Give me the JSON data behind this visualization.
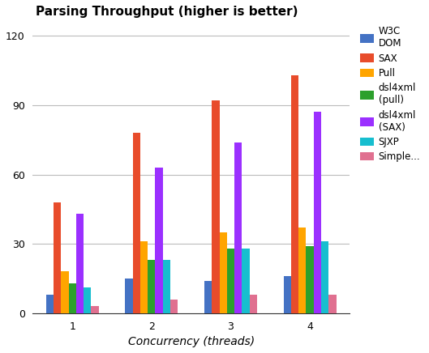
{
  "title": "Parsing Throughput (higher is better)",
  "xlabel": "Concurrency (threads)",
  "categories": [
    1,
    2,
    3,
    4
  ],
  "series": [
    {
      "name": "W3C\nDOM",
      "color": "#4472C4",
      "values": [
        8,
        15,
        14,
        16
      ]
    },
    {
      "name": "SAX",
      "color": "#E84C2B",
      "values": [
        48,
        78,
        92,
        103
      ]
    },
    {
      "name": "Pull",
      "color": "#FFA500",
      "values": [
        18,
        31,
        35,
        37
      ]
    },
    {
      "name": "dsl4xml\n(pull)",
      "color": "#2CA02C",
      "values": [
        13,
        23,
        28,
        29
      ]
    },
    {
      "name": "dsl4xml\n(SAX)",
      "color": "#9B30FF",
      "values": [
        43,
        63,
        74,
        87
      ]
    },
    {
      "name": "SJXP",
      "color": "#17BECF",
      "values": [
        11,
        23,
        28,
        31
      ]
    },
    {
      "name": "Simple...",
      "color": "#E07090",
      "values": [
        3,
        6,
        8,
        8
      ]
    }
  ],
  "ylim": [
    0,
    125
  ],
  "yticks": [
    0,
    30,
    60,
    90,
    120
  ],
  "grid_color": "#BBBBBB",
  "background_color": "#FFFFFF",
  "bar_width": 0.095,
  "title_fontsize": 11,
  "axis_label_fontsize": 10,
  "tick_fontsize": 9,
  "legend_fontsize": 8.5
}
